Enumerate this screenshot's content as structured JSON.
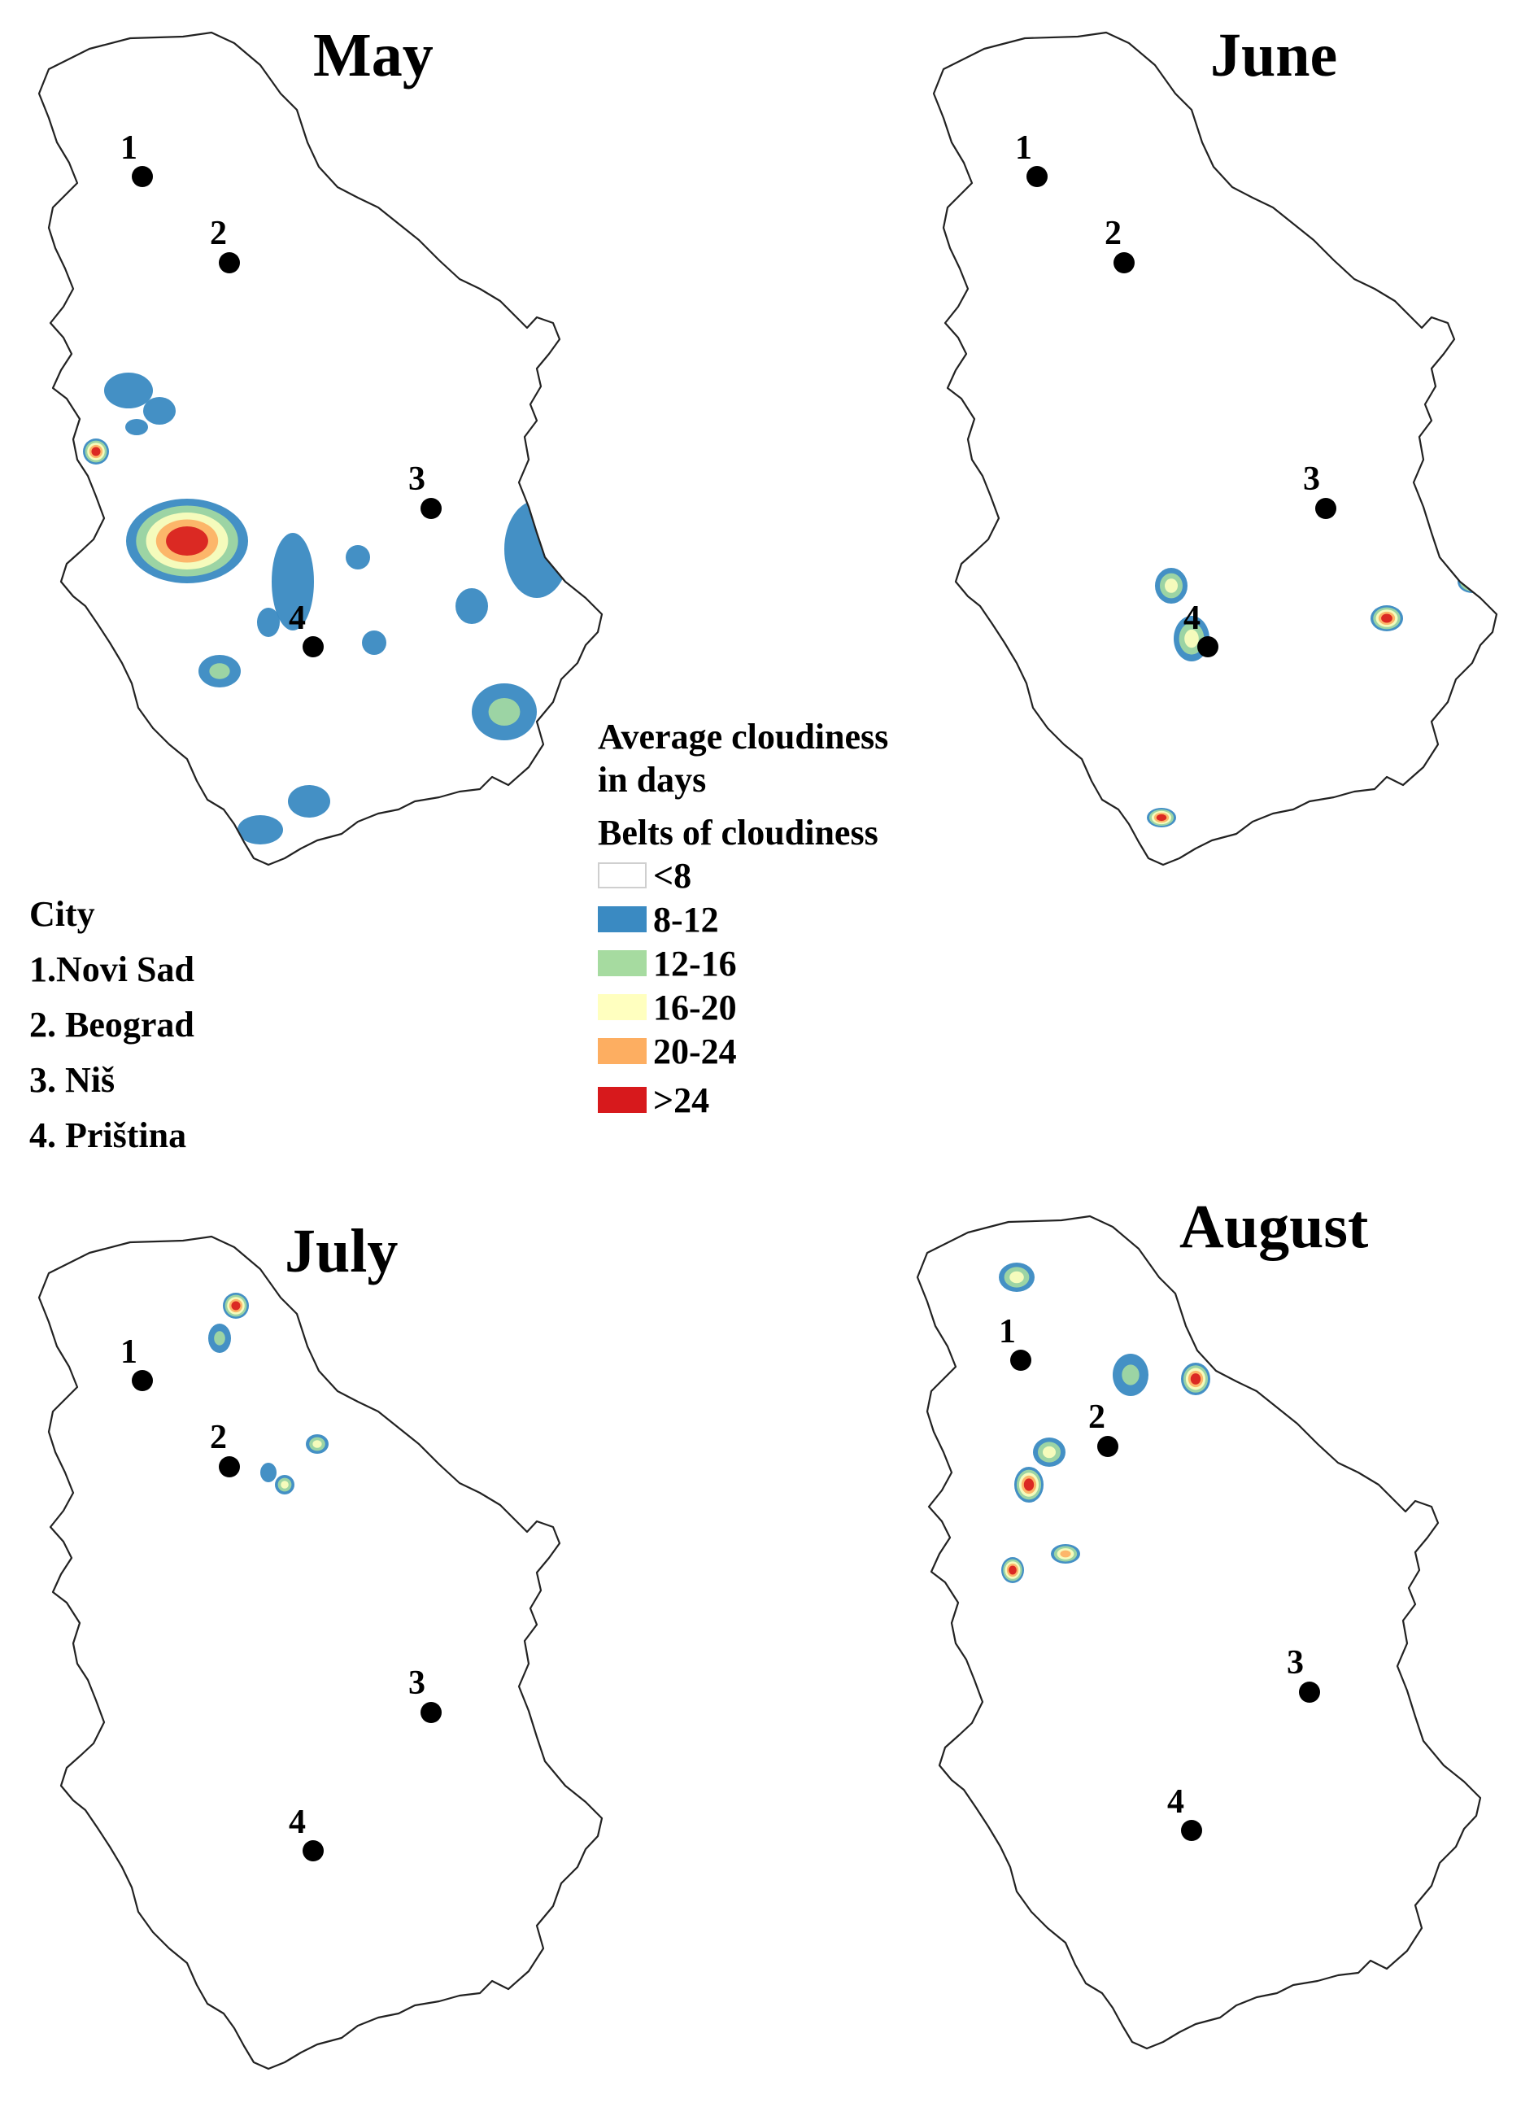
{
  "maps": [
    {
      "title": "May",
      "cities": [
        {
          "num": "1"
        },
        {
          "num": "2"
        },
        {
          "num": "3"
        },
        {
          "num": "4"
        }
      ],
      "cloud_areas": [
        {
          "belt": "8-12"
        },
        {
          "belt": "8-12"
        },
        {
          "belt": "8-12"
        },
        {
          "belt": ">24"
        },
        {
          "belt": ">24"
        },
        {
          "belt": "8-12"
        },
        {
          "belt": "8-12"
        },
        {
          "belt": "8-12"
        },
        {
          "belt": "8-12"
        },
        {
          "belt": "8-12"
        },
        {
          "belt": "8-12"
        },
        {
          "belt": "12-16"
        },
        {
          "belt": "8-12"
        },
        {
          "belt": "12-16"
        },
        {
          "belt": "8-12"
        }
      ]
    },
    {
      "title": "June",
      "cities": [
        {
          "num": "1"
        },
        {
          "num": "2"
        },
        {
          "num": "3"
        },
        {
          "num": "4"
        }
      ],
      "cloud_areas": [
        {
          "belt": "16-20"
        },
        {
          "belt": "20-24"
        },
        {
          "belt": "16-20"
        },
        {
          "belt": ">24"
        },
        {
          "belt": ">24"
        },
        {
          "belt": ">24"
        },
        {
          "belt": ">24"
        }
      ]
    },
    {
      "title": "July",
      "cities": [
        {
          "num": "1"
        },
        {
          "num": "2"
        },
        {
          "num": "3"
        },
        {
          "num": "4"
        }
      ],
      "cloud_areas": [
        {
          "belt": ">24"
        },
        {
          "belt": "12-16"
        },
        {
          "belt": ">24"
        },
        {
          "belt": "12-16"
        },
        {
          "belt": "16-20"
        },
        {
          "belt": "16-20"
        },
        {
          "belt": "8-12"
        }
      ]
    },
    {
      "title": "August",
      "cities": [
        {
          "num": "1"
        },
        {
          "num": "2"
        },
        {
          "num": "3"
        },
        {
          "num": "4"
        }
      ],
      "cloud_areas": [
        {
          "belt": "16-20"
        },
        {
          "belt": "12-16"
        },
        {
          "belt": ">24"
        },
        {
          "belt": "12-16"
        },
        {
          "belt": ">24"
        },
        {
          "belt": "16-20"
        },
        {
          "belt": ">24"
        },
        {
          "belt": ">24"
        },
        {
          "belt": ">24"
        },
        {
          "belt": "20-24"
        }
      ]
    }
  ],
  "city_legend": {
    "heading": "City",
    "items": [
      "1.Novi Sad",
      "2. Beograd",
      "3. Niš",
      "4. Priština"
    ]
  },
  "belt_legend": {
    "heading_line1": "Average cloudiness",
    "heading_line2": "in days",
    "subheading": "Belts of cloudiness",
    "belts": [
      {
        "label": "<8",
        "color": "#ffffff"
      },
      {
        "label": "8-12",
        "color": "#3a8ac2"
      },
      {
        "label": "12-16",
        "color": "#a6dba0"
      },
      {
        "label": "16-20",
        "color": "#ffffbf"
      },
      {
        "label": "20-24",
        "color": "#fdae61"
      },
      {
        "label": ">24",
        "color": "#d7191c"
      }
    ]
  }
}
